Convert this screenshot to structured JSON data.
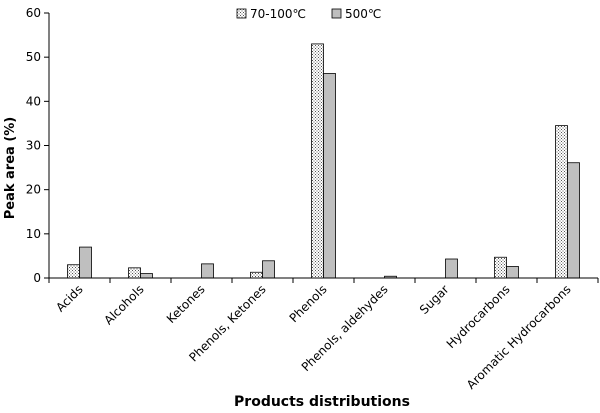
{
  "chart_data": {
    "type": "bar",
    "title": "",
    "xlabel": "Products distributions",
    "ylabel": "Peak area (%)",
    "ylim": [
      0,
      60
    ],
    "yticks": [
      0,
      10,
      20,
      30,
      40,
      50,
      60
    ],
    "grid": false,
    "legend_position": "top-center",
    "categories": [
      "Acids",
      "Alcohols",
      "Ketones",
      "Phenols, Ketones",
      "Phenols",
      "Phenols, aldehydes",
      "Sugar",
      "Hydrocarbons",
      "Aromatic Hydrocarbons"
    ],
    "series": [
      {
        "name": "70-100℃",
        "values": [
          3.0,
          2.3,
          0,
          1.3,
          53.0,
          0,
          0,
          4.7,
          34.5
        ],
        "color": "#ffffff",
        "pattern": "dotted"
      },
      {
        "name": "500℃",
        "values": [
          7.0,
          1.0,
          3.2,
          3.9,
          46.3,
          0.4,
          4.3,
          2.6,
          26.1
        ],
        "color": "#bfbfbf",
        "pattern": "solid"
      }
    ]
  }
}
